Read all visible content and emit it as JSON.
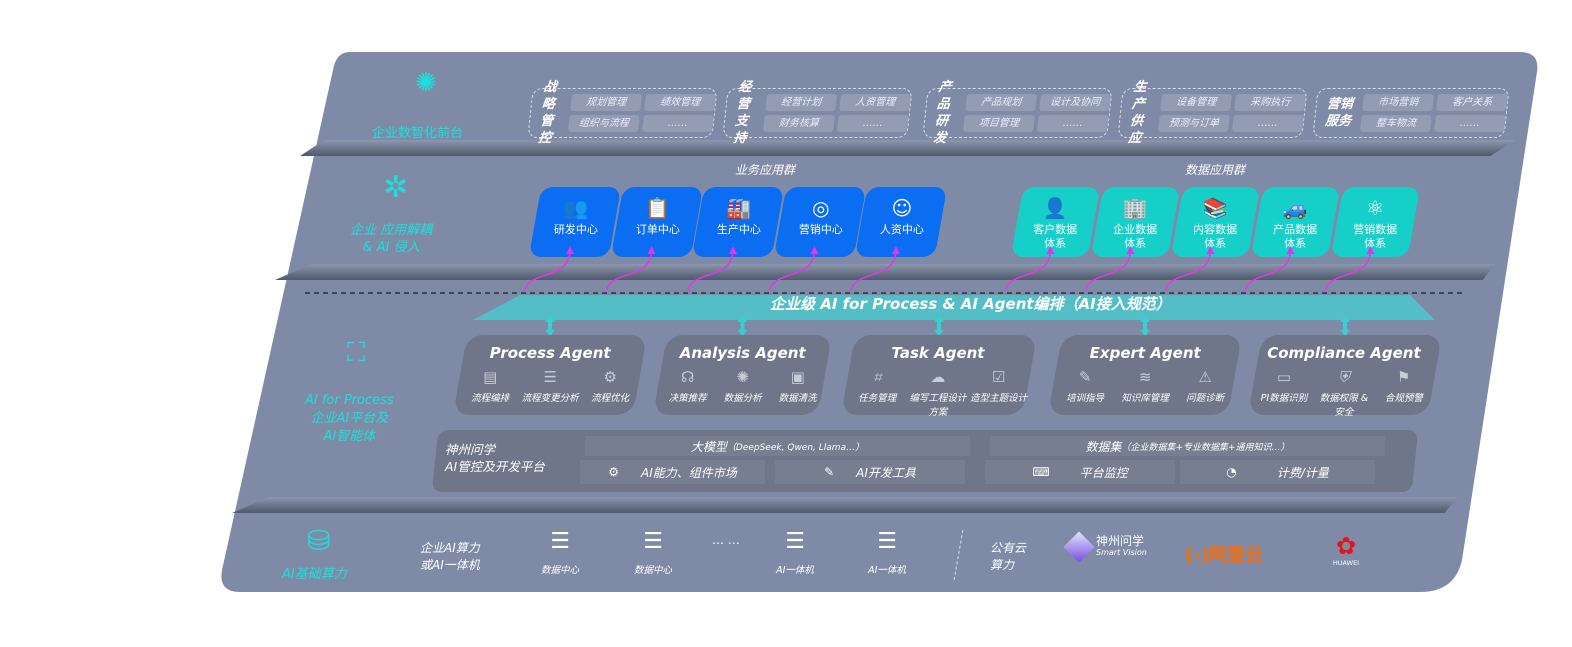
{
  "colors": {
    "panel": "#7f8ba6",
    "teal": "#19e0dc",
    "blue": "#0a6df2",
    "cyan": "#17cfc9",
    "arrow": "#e436e8",
    "agent": "#6f7689"
  },
  "front": {
    "label": "企业数智化前台",
    "groups": [
      {
        "title": "战略管控",
        "items": [
          "规划管理",
          "绩效管理",
          "组织与流程",
          "……"
        ]
      },
      {
        "title": "经营支持",
        "items": [
          "经营计划",
          "人资管理",
          "财务核算",
          "……"
        ]
      },
      {
        "title": "产品研发",
        "items": [
          "产品规划",
          "设计及协同",
          "项目管理",
          "……"
        ]
      },
      {
        "title": "生产供应",
        "items": [
          "设备管理",
          "采购执行",
          "预测与订单",
          "……"
        ]
      },
      {
        "title": "营销服务",
        "items": [
          "市场营销",
          "客户关系",
          "整车物流",
          "……"
        ]
      }
    ]
  },
  "apps": {
    "label_line1": "企业 应用解耦",
    "label_line2": "& AI 侵入",
    "business_title": "业务应用群",
    "business": [
      {
        "icon": "users-icon",
        "glyph": "👥",
        "label": "研发中心"
      },
      {
        "icon": "clipboard-icon",
        "glyph": "📋",
        "label": "订单中心"
      },
      {
        "icon": "factory-icon",
        "glyph": "🏭",
        "label": "生产中心"
      },
      {
        "icon": "target-icon",
        "glyph": "◎",
        "label": "营销中心"
      },
      {
        "icon": "person-icon",
        "glyph": "☺",
        "label": "人资中心"
      }
    ],
    "data_title": "数据应用群",
    "data": [
      {
        "icon": "user-icon",
        "glyph": "👤",
        "label": "客户数据体系"
      },
      {
        "icon": "building-icon",
        "glyph": "🏢",
        "label": "企业数据体系"
      },
      {
        "icon": "books-icon",
        "glyph": "📚",
        "label": "内容数据体系"
      },
      {
        "icon": "car-icon",
        "glyph": "🚙",
        "label": "产品数据体系"
      },
      {
        "icon": "atom-icon",
        "glyph": "⚛",
        "label": "营销数据体系"
      }
    ]
  },
  "orchestration": "企业级 AI for Process & AI Agent编排（AI接入规范）",
  "ai": {
    "label_line1": "AI for Process",
    "label_line2": "企业AI平台及",
    "label_line3": "AI智能体",
    "agents": [
      {
        "title": "Process Agent",
        "features": [
          {
            "icon": "chart-icon",
            "glyph": "▤",
            "label": "流程编排"
          },
          {
            "icon": "list-icon",
            "glyph": "☰",
            "label": "流程变更分析"
          },
          {
            "icon": "optimize-icon",
            "glyph": "⚙",
            "label": "流程优化"
          }
        ]
      },
      {
        "title": "Analysis Agent",
        "features": [
          {
            "icon": "head-icon",
            "glyph": "☊",
            "label": "决策推荐"
          },
          {
            "icon": "analysis-icon",
            "glyph": "✺",
            "label": "数据分析"
          },
          {
            "icon": "clean-icon",
            "glyph": "▣",
            "label": "数据清洗"
          }
        ]
      },
      {
        "title": "Task Agent",
        "features": [
          {
            "icon": "task-icon",
            "glyph": "⌗",
            "label": "任务管理"
          },
          {
            "icon": "cloud-icon",
            "glyph": "☁",
            "label": "编写工程设计方案"
          },
          {
            "icon": "checklist-icon",
            "glyph": "☑",
            "label": "造型主题设计"
          }
        ]
      },
      {
        "title": "Expert Agent",
        "features": [
          {
            "icon": "training-icon",
            "glyph": "✎",
            "label": "培训指导"
          },
          {
            "icon": "layers-icon",
            "glyph": "≋",
            "label": "知识库管理"
          },
          {
            "icon": "diagnose-icon",
            "glyph": "⚠",
            "label": "问题诊断"
          }
        ]
      },
      {
        "title": "Compliance Agent",
        "features": [
          {
            "icon": "id-icon",
            "glyph": "▭",
            "label": "PI数据识别"
          },
          {
            "icon": "security-icon",
            "glyph": "⛨",
            "label": "数据权限 & 安全"
          },
          {
            "icon": "alert-icon",
            "glyph": "⚑",
            "label": "合规预警"
          }
        ]
      }
    ],
    "platform": {
      "title_line1": "神州问学",
      "title_line2": "AI管控及开发平台",
      "llm": "大模型",
      "llm_note": "（DeepSeek, Qwen, Llama…）",
      "dataset": "数据集",
      "dataset_note": "（企业数据集+专业数据集+通用知识…）",
      "market": "AI能力、组件市场",
      "devtools": "AI开发工具",
      "monitor": "平台监控",
      "billing": "计费/计量"
    }
  },
  "infra": {
    "label": "AI基础算力",
    "enterprise_line1": "企业AI算力",
    "enterprise_line2": "或AI一体机",
    "servers": [
      "数据中心",
      "数据中心",
      "AI一体机",
      "AI一体机"
    ],
    "ellipsis": "… …",
    "public_line1": "公有云",
    "public_line2": "算力",
    "logos": {
      "smartvision": "神州问学",
      "smartvision_en": "Smart Vision",
      "aliyun": "阿里云",
      "aliyun_mark": "(-)",
      "huawei": "HUAWEI"
    }
  }
}
